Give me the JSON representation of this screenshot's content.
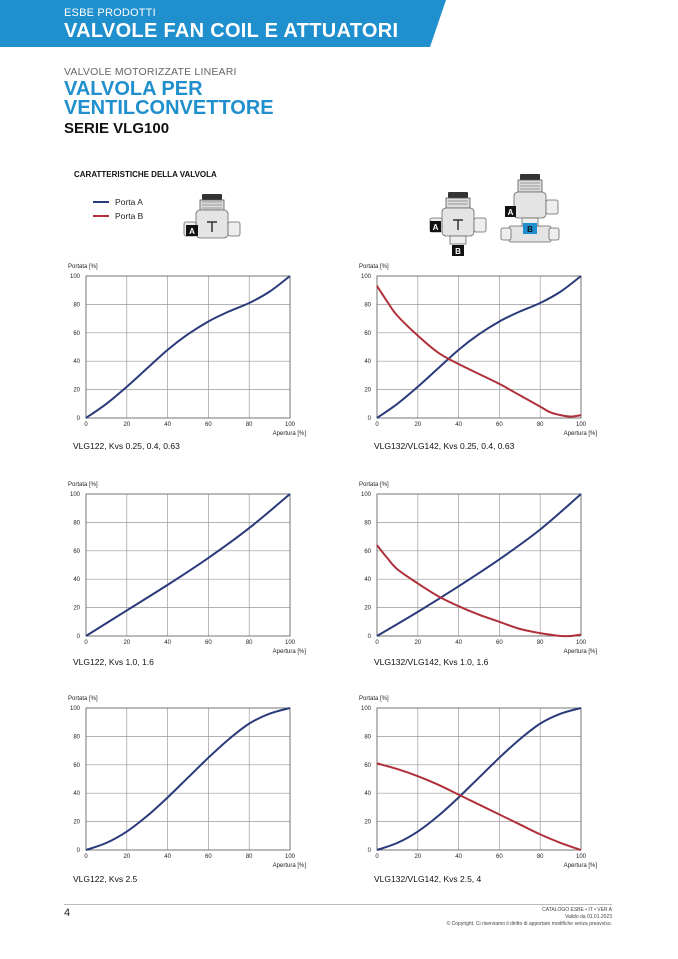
{
  "header": {
    "category": "ESBE PRODOTTI",
    "title": "VALVOLE FAN COIL E ATTUATORI",
    "accent_color": "#1f8fcd"
  },
  "intro": {
    "subtitle": "VALVOLE MOTORIZZATE LINEARI",
    "title_line1": "VALVOLA PER",
    "title_line2": "VENTILCONVETTORE",
    "series": "SERIE VLG100"
  },
  "section_heading": "CARATTERISTICHE DELLA VALVOLA",
  "legend": [
    {
      "label": "Porta A",
      "color": "#2a3a7a"
    },
    {
      "label": "Porta B",
      "color": "#b0303a"
    }
  ],
  "valve_labels": {
    "a": "A",
    "b": "B"
  },
  "axis": {
    "y_label": "Portata [%]",
    "x_label": "Apertura [%]",
    "ticks": [
      "0",
      "20",
      "40",
      "60",
      "80",
      "100"
    ]
  },
  "chart_data": [
    {
      "type": "line",
      "caption": "VLG122, Kvs 0.25, 0.4, 0.63",
      "xlabel": "Apertura [%]",
      "ylabel": "Portata [%]",
      "xlim": [
        0,
        100
      ],
      "ylim": [
        0,
        100
      ],
      "grid": true,
      "series": [
        {
          "name": "Porta A",
          "color": "#2a3a7a",
          "x": [
            0,
            10,
            20,
            30,
            40,
            50,
            60,
            70,
            80,
            90,
            100
          ],
          "y": [
            0,
            10,
            22,
            35,
            48,
            59,
            68,
            75,
            81,
            89,
            100
          ]
        }
      ]
    },
    {
      "type": "line",
      "caption": "VLG132/VLG142, Kvs 0.25, 0.4, 0.63",
      "xlabel": "Apertura [%]",
      "ylabel": "Portata [%]",
      "xlim": [
        0,
        100
      ],
      "ylim": [
        0,
        100
      ],
      "grid": true,
      "series": [
        {
          "name": "Porta A",
          "color": "#2a3a7a",
          "x": [
            0,
            10,
            20,
            30,
            40,
            50,
            60,
            70,
            80,
            90,
            100
          ],
          "y": [
            0,
            10,
            22,
            35,
            48,
            59,
            68,
            75,
            81,
            89,
            100
          ]
        },
        {
          "name": "Porta B",
          "color": "#b0303a",
          "x": [
            0,
            5,
            10,
            20,
            30,
            40,
            50,
            60,
            70,
            80,
            85,
            90,
            95,
            100
          ],
          "y": [
            93,
            82,
            72,
            58,
            46,
            38,
            31,
            24,
            16,
            8,
            4,
            2,
            1,
            2
          ]
        }
      ]
    },
    {
      "type": "line",
      "caption": "VLG122, Kvs 1.0, 1.6",
      "xlabel": "Apertura [%]",
      "ylabel": "Portata [%]",
      "xlim": [
        0,
        100
      ],
      "ylim": [
        0,
        100
      ],
      "grid": true,
      "series": [
        {
          "name": "Porta A",
          "color": "#2a3a7a",
          "x": [
            0,
            20,
            40,
            60,
            80,
            100
          ],
          "y": [
            0,
            18,
            36,
            55,
            76,
            100
          ]
        }
      ]
    },
    {
      "type": "line",
      "caption": "VLG132/VLG142, Kvs 1.0, 1.6",
      "xlabel": "Apertura [%]",
      "ylabel": "Portata [%]",
      "xlim": [
        0,
        100
      ],
      "ylim": [
        0,
        100
      ],
      "grid": true,
      "series": [
        {
          "name": "Porta A",
          "color": "#2a3a7a",
          "x": [
            0,
            20,
            40,
            60,
            80,
            100
          ],
          "y": [
            0,
            17,
            35,
            54,
            75,
            100
          ]
        },
        {
          "name": "Porta B",
          "color": "#b0303a",
          "x": [
            0,
            5,
            10,
            20,
            30,
            40,
            50,
            60,
            70,
            80,
            85,
            90,
            95,
            100
          ],
          "y": [
            64,
            55,
            47,
            37,
            28,
            21,
            15,
            10,
            5,
            2,
            1,
            0,
            0,
            1
          ]
        }
      ]
    },
    {
      "type": "line",
      "caption": "VLG122, Kvs 2.5",
      "xlabel": "Apertura [%]",
      "ylabel": "Portata [%]",
      "xlim": [
        0,
        100
      ],
      "ylim": [
        0,
        100
      ],
      "grid": true,
      "series": [
        {
          "name": "Porta A",
          "color": "#2a3a7a",
          "x": [
            0,
            10,
            20,
            30,
            40,
            50,
            60,
            70,
            80,
            90,
            100
          ],
          "y": [
            0,
            5,
            13,
            24,
            37,
            51,
            65,
            78,
            89,
            96,
            100
          ]
        }
      ]
    },
    {
      "type": "line",
      "caption": "VLG132/VLG142, Kvs 2.5, 4",
      "xlabel": "Apertura [%]",
      "ylabel": "Portata [%]",
      "xlim": [
        0,
        100
      ],
      "ylim": [
        0,
        100
      ],
      "grid": true,
      "series": [
        {
          "name": "Porta A",
          "color": "#2a3a7a",
          "x": [
            0,
            10,
            20,
            30,
            40,
            50,
            60,
            70,
            80,
            90,
            100
          ],
          "y": [
            0,
            5,
            13,
            24,
            37,
            51,
            65,
            78,
            89,
            96,
            100
          ]
        },
        {
          "name": "Porta B",
          "color": "#b0303a",
          "x": [
            0,
            10,
            20,
            30,
            40,
            50,
            60,
            70,
            80,
            90,
            100
          ],
          "y": [
            61,
            57,
            52,
            46,
            39,
            32,
            25,
            18,
            11,
            5,
            0
          ]
        }
      ]
    }
  ],
  "footer": {
    "page_number": "4",
    "catalog": "CATALOGO ESBE • IT • VER A",
    "validity": "Valido da 01.01.2023",
    "copyright": "© Copyright. Ci riserviamo il diritto di apportare modifiche senza preavviso."
  }
}
